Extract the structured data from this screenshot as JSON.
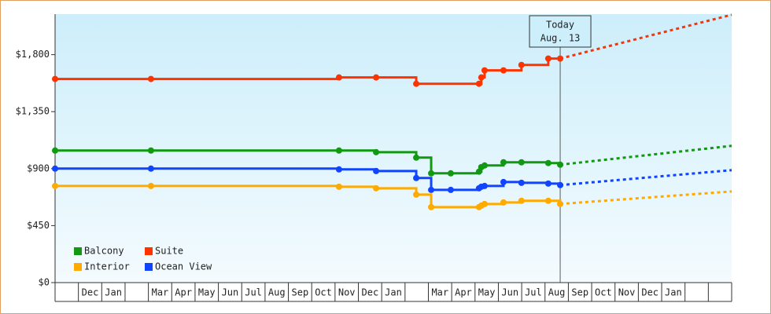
{
  "chart_data": {
    "type": "step-line",
    "categories": [
      null,
      "Dec",
      "Jan",
      null,
      "Mar",
      "Apr",
      "May",
      "Jun",
      "Jul",
      "Aug",
      "Sep",
      "Oct",
      "Nov",
      "Dec",
      "Jan",
      null,
      "Mar",
      "Apr",
      "May",
      "Jun",
      "Jul",
      "Aug",
      "Sep",
      "Oct",
      "Nov",
      "Dec",
      "Jan",
      null,
      null
    ],
    "xlim": [
      0,
      29
    ],
    "ylim": [
      0,
      2120
    ],
    "yticks": [
      {
        "value": 0,
        "label": "$0"
      },
      {
        "value": 450,
        "label": "$450"
      },
      {
        "value": 900,
        "label": "$900"
      },
      {
        "value": 1350,
        "label": "$1,350"
      },
      {
        "value": 1800,
        "label": "$1,800"
      }
    ],
    "legend": "bottom-left",
    "annotation": {
      "x": 21.65,
      "lines": [
        "Today",
        "Aug. 13"
      ]
    },
    "series": [
      {
        "name": "Balcony",
        "color": "#119911",
        "x": [
          0,
          4.11,
          12.17,
          13.76,
          15.48,
          16.12,
          16.96,
          18.17,
          18.27,
          18.41,
          19.22,
          19.99,
          21.14,
          21.65
        ],
        "values": [
          1043,
          1043,
          1043,
          1030,
          987,
          863,
          863,
          876,
          912,
          925,
          950,
          950,
          944,
          931
        ],
        "projection": {
          "x": [
            21.65,
            29
          ],
          "values": [
            931,
            1080
          ]
        }
      },
      {
        "name": "Suite",
        "color": "#ff3300",
        "x": [
          0,
          4.11,
          12.17,
          13.76,
          15.48,
          18.17,
          18.27,
          18.41,
          19.22,
          19.99,
          21.14,
          21.65
        ],
        "values": [
          1608,
          1608,
          1620,
          1620,
          1570,
          1570,
          1620,
          1676,
          1676,
          1719,
          1769,
          1769
        ],
        "projection": {
          "x": [
            21.65,
            29
          ],
          "values": [
            1769,
            2115
          ]
        }
      },
      {
        "name": "Interior",
        "color": "#ffaa00",
        "x": [
          0,
          4.11,
          12.17,
          13.76,
          15.48,
          16.12,
          18.17,
          18.27,
          18.41,
          19.22,
          19.99,
          21.14,
          21.65
        ],
        "values": [
          763,
          763,
          757,
          745,
          695,
          596,
          596,
          608,
          621,
          633,
          646,
          646,
          621
        ],
        "projection": {
          "x": [
            21.65,
            29
          ],
          "values": [
            621,
            720
          ]
        }
      },
      {
        "name": "Ocean View",
        "color": "#1144ff",
        "x": [
          0,
          4.11,
          12.17,
          13.76,
          15.48,
          16.12,
          16.96,
          18.17,
          18.27,
          18.41,
          19.22,
          19.99,
          21.14,
          21.65
        ],
        "values": [
          900,
          900,
          894,
          881,
          826,
          732,
          732,
          745,
          757,
          763,
          794,
          788,
          782,
          770
        ],
        "projection": {
          "x": [
            21.65,
            29
          ],
          "values": [
            770,
            888
          ]
        }
      }
    ]
  }
}
